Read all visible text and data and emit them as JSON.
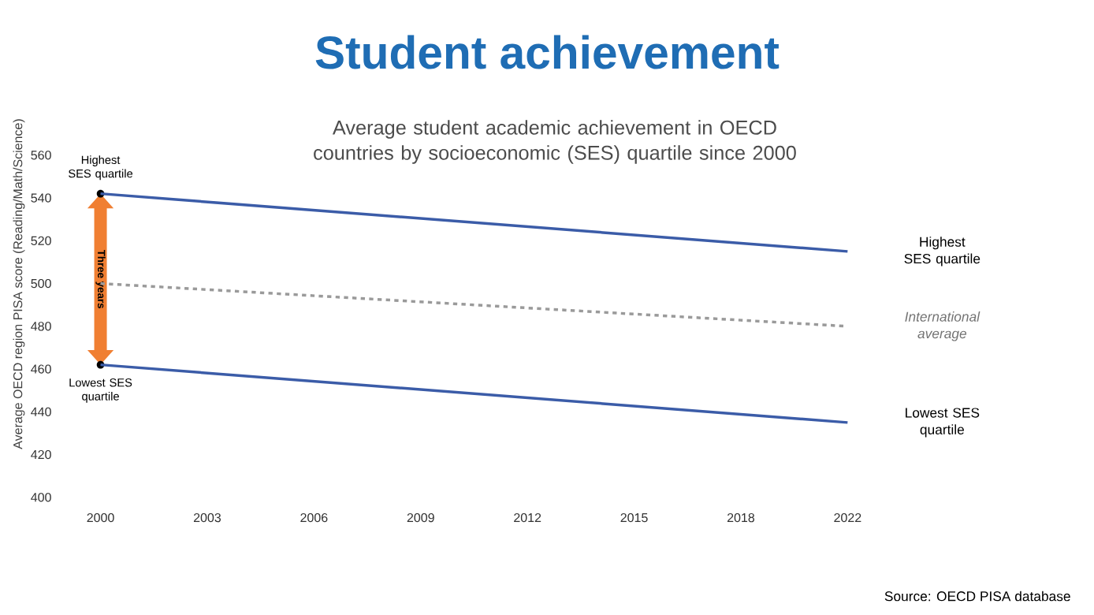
{
  "chart_data": {
    "type": "line",
    "title": "Student achievement",
    "subtitle": "Average student academic achievement in OECD countries by socioeconomic (SES) quartile since 2000",
    "ylabel": "Average OECD region PISA score (Reading/Math/Science)",
    "categories": [
      "2000",
      "2003",
      "2006",
      "2009",
      "2012",
      "2015",
      "2018",
      "2022"
    ],
    "series": [
      {
        "name": "Highest SES quartile",
        "color": "#3b5ca8",
        "line_style": "solid",
        "values": [
          542,
          null,
          null,
          null,
          null,
          null,
          null,
          515
        ]
      },
      {
        "name": "International average",
        "color": "#9a9a9a",
        "line_style": "dotted",
        "values": [
          500,
          null,
          null,
          null,
          null,
          null,
          null,
          480
        ]
      },
      {
        "name": "Lowest SES quartile",
        "color": "#3b5ca8",
        "line_style": "solid",
        "values": [
          462,
          null,
          null,
          null,
          null,
          null,
          null,
          435
        ]
      }
    ],
    "ylim": [
      400,
      560
    ],
    "yticks": [
      400,
      420,
      440,
      460,
      480,
      500,
      520,
      540,
      560
    ],
    "grid": false,
    "annotations": [
      {
        "text": "Highest SES quartile",
        "x": "2000",
        "y": 542
      },
      {
        "text": "Lowest SES quartile",
        "x": "2000",
        "y": 462
      },
      {
        "text": "Three years",
        "x": "2000",
        "y": 502
      },
      "Source: OECD PISA database"
    ]
  }
}
